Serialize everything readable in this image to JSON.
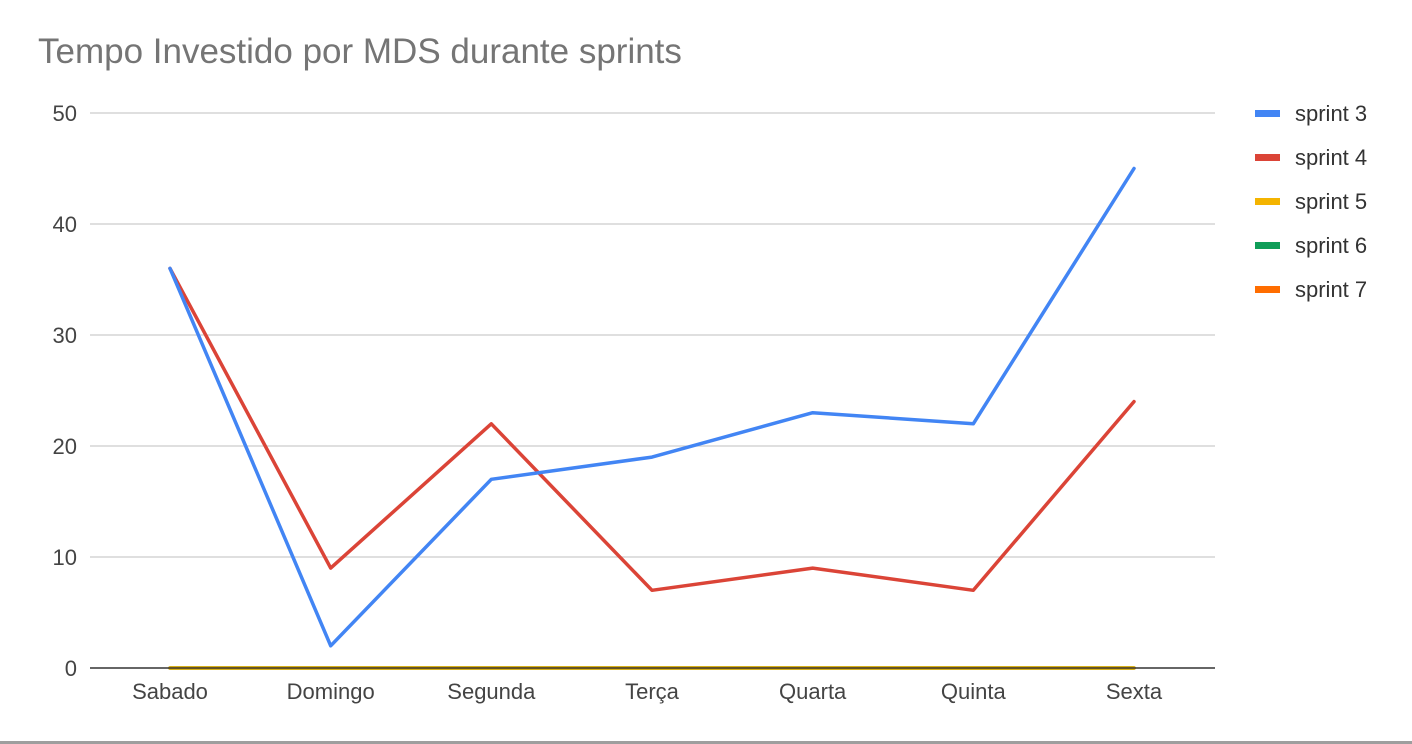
{
  "chart_data": {
    "type": "line",
    "title": "Tempo Investido por MDS durante sprints",
    "xlabel": "",
    "ylabel": "",
    "categories": [
      "Sabado",
      "Domingo",
      "Segunda",
      "Terça",
      "Quarta",
      "Quinta",
      "Sexta"
    ],
    "ylim": [
      0,
      50
    ],
    "yticks": [
      0,
      10,
      20,
      30,
      40,
      50
    ],
    "grid": true,
    "legend_position": "right",
    "series": [
      {
        "name": "sprint 3",
        "color": "#4285f4",
        "values": [
          36,
          2,
          17,
          19,
          23,
          22,
          45
        ]
      },
      {
        "name": "sprint 4",
        "color": "#db4437",
        "values": [
          36,
          9,
          22,
          7,
          9,
          7,
          24
        ]
      },
      {
        "name": "sprint 5",
        "color": "#f4b400",
        "values": [
          0,
          0,
          0,
          0,
          0,
          0,
          0
        ]
      },
      {
        "name": "sprint 6",
        "color": "#0f9d58",
        "values": [
          0,
          0,
          0,
          0,
          0,
          0,
          0
        ]
      },
      {
        "name": "sprint 7",
        "color": "#ff6d00",
        "values": [
          0,
          0,
          0,
          0,
          0,
          0,
          0
        ]
      }
    ]
  }
}
